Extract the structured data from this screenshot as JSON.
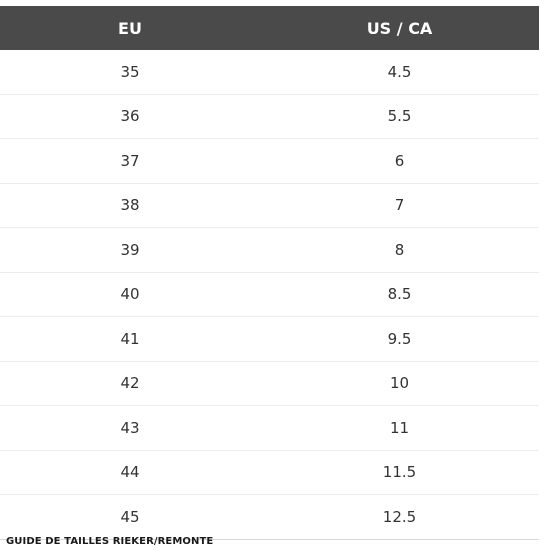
{
  "table": {
    "headers": [
      "EU",
      "US / CA"
    ],
    "rows": [
      [
        "35",
        "4.5"
      ],
      [
        "36",
        "5.5"
      ],
      [
        "37",
        "6"
      ],
      [
        "38",
        "7"
      ],
      [
        "39",
        "8"
      ],
      [
        "40",
        "8.5"
      ],
      [
        "41",
        "9.5"
      ],
      [
        "42",
        "10"
      ],
      [
        "43",
        "11"
      ],
      [
        "44",
        "11.5"
      ],
      [
        "45",
        "12.5"
      ]
    ]
  },
  "caption": "GUIDE DE TAILLES RIEKER/REMONTE",
  "colors": {
    "header_bg": "#4a4a4a",
    "header_text": "#ffffff",
    "cell_text": "#333333"
  }
}
